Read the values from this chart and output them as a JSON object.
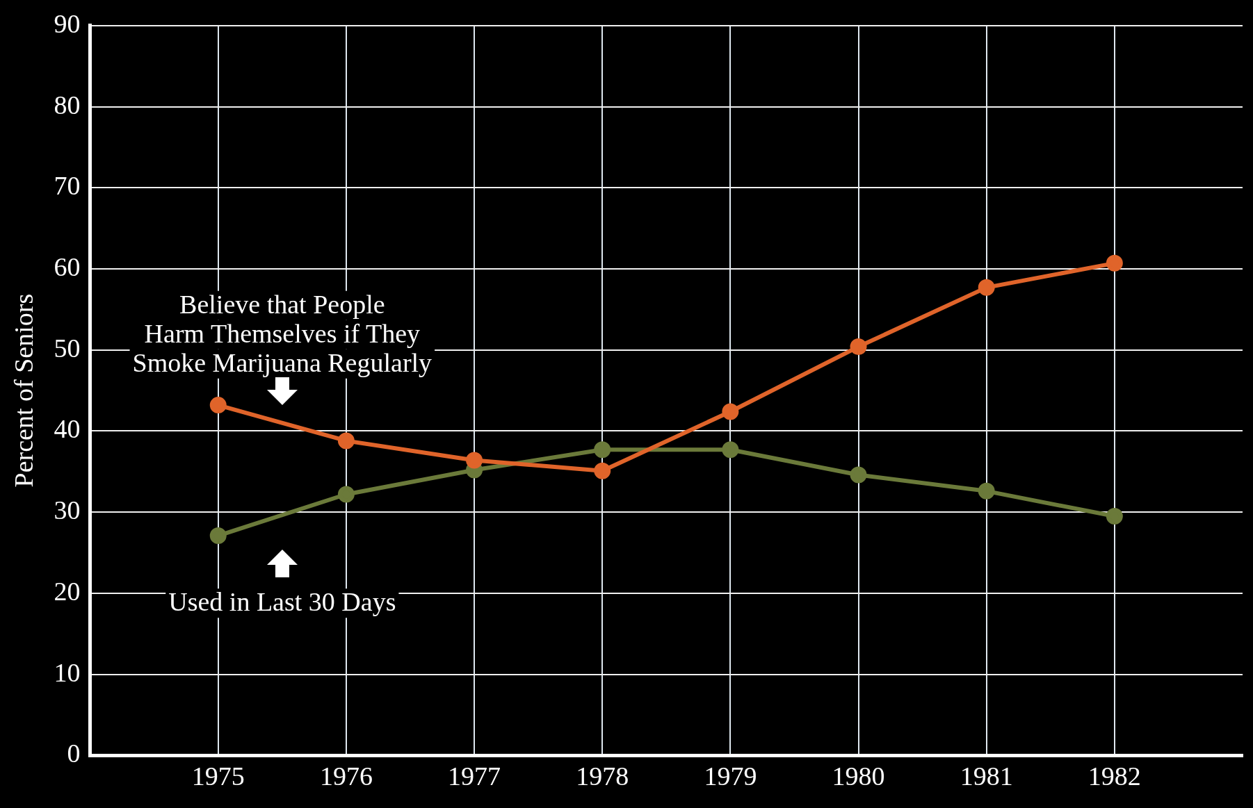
{
  "chart_data": {
    "type": "line",
    "ylabel": "Percent of Seniors",
    "x": [
      1975,
      1976,
      1977,
      1978,
      1979,
      1980,
      1981,
      1982
    ],
    "xlim": [
      1974,
      1983
    ],
    "xticks": [
      1975,
      1976,
      1977,
      1978,
      1979,
      1980,
      1981,
      1982
    ],
    "ylim": [
      0,
      90
    ],
    "yticks": [
      0,
      10,
      20,
      30,
      40,
      50,
      60,
      70,
      80,
      90
    ],
    "series": [
      {
        "color": "#e0642a",
        "values": [
          43.2,
          38.8,
          36.4,
          35.1,
          42.4,
          50.4,
          57.7,
          60.7
        ]
      },
      {
        "color": "#6b7a3a",
        "values": [
          27.1,
          32.2,
          35.2,
          37.7,
          37.7,
          34.6,
          32.6,
          29.5
        ]
      }
    ],
    "annotations": [
      "Believe that People\nHarm Themselves if They\nSmoke Marijuana Regularly",
      "Used in Last 30 Days"
    ],
    "grid": true,
    "marker": "circle",
    "line_style": "solid"
  }
}
